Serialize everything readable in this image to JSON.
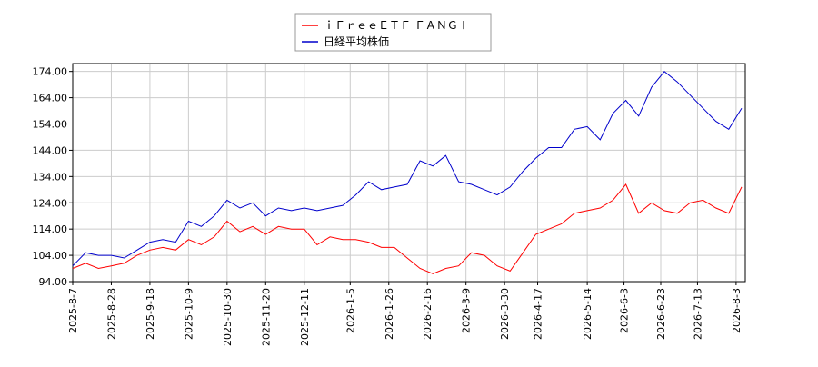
{
  "chart_data": {
    "type": "line",
    "x": [
      "2025-8-7",
      "2025-8-14",
      "2025-8-21",
      "2025-8-28",
      "2025-9-4",
      "2025-9-11",
      "2025-9-18",
      "2025-9-25",
      "2025-10-2",
      "2025-10-9",
      "2025-10-16",
      "2025-10-23",
      "2025-10-30",
      "2025-11-6",
      "2025-11-13",
      "2025-11-20",
      "2025-11-27",
      "2025-12-4",
      "2025-12-11",
      "2025-12-18",
      "2025-12-25",
      "2026-1-1",
      "2026-1-8",
      "2026-1-15",
      "2026-1-22",
      "2026-1-29",
      "2026-2-5",
      "2026-2-12",
      "2026-2-19",
      "2026-2-26",
      "2026-3-5",
      "2026-3-12",
      "2026-3-19",
      "2026-3-26",
      "2026-4-2",
      "2026-4-9",
      "2026-4-16",
      "2026-4-23",
      "2026-4-30",
      "2026-5-7",
      "2026-5-14",
      "2026-5-21",
      "2026-5-28",
      "2026-6-4",
      "2026-6-11",
      "2026-6-18",
      "2026-6-25",
      "2026-7-2",
      "2026-7-9",
      "2026-7-16",
      "2026-7-23",
      "2026-7-30",
      "2026-8-6"
    ],
    "series": [
      {
        "name": "ｉＦｒｅｅＥＴＦ ＦＡＮＧ＋",
        "color": "#ff0000",
        "values": [
          99,
          101,
          99,
          100,
          101,
          104,
          106,
          107,
          106,
          110,
          108,
          111,
          117,
          113,
          115,
          112,
          115,
          114,
          114,
          108,
          111,
          110,
          110,
          109,
          107,
          107,
          103,
          99,
          97,
          99,
          100,
          105,
          104,
          100,
          98,
          105,
          112,
          114,
          116,
          120,
          121,
          122,
          125,
          131,
          120,
          124,
          121,
          120,
          124,
          125,
          122,
          120,
          130
        ]
      },
      {
        "name": "日経平均株価",
        "color": "#0000cc",
        "values": [
          100,
          105,
          104,
          104,
          103,
          106,
          109,
          110,
          109,
          117,
          115,
          119,
          125,
          122,
          124,
          119,
          122,
          121,
          122,
          121,
          122,
          123,
          127,
          132,
          129,
          130,
          131,
          140,
          138,
          142,
          132,
          131,
          129,
          127,
          130,
          136,
          141,
          145,
          145,
          152,
          153,
          148,
          158,
          163,
          157,
          168,
          174,
          170,
          165,
          160,
          155,
          152,
          160
        ]
      }
    ],
    "xlim": [
      "2025-8-7",
      "2026-8-8"
    ],
    "xticks": [
      "2025-8-7",
      "2025-8-28",
      "2025-9-18",
      "2025-10-9",
      "2025-10-30",
      "2025-11-20",
      "2025-12-11",
      "2026-1-5",
      "2026-1-26",
      "2026-2-16",
      "2026-3-9",
      "2026-3-30",
      "2026-4-17",
      "2026-5-14",
      "2026-6-3",
      "2026-6-23",
      "2026-7-13",
      "2026-8-3"
    ],
    "ylim": [
      94,
      177
    ],
    "yticks": [
      {
        "value": 94,
        "label": "94.00"
      },
      {
        "value": 104,
        "label": "104.00"
      },
      {
        "value": 114,
        "label": "114.00"
      },
      {
        "value": 124,
        "label": "124.00"
      },
      {
        "value": 134,
        "label": "134.00"
      },
      {
        "value": 144,
        "label": "144.00"
      },
      {
        "value": 154,
        "label": "154.00"
      },
      {
        "value": 164,
        "label": "164.00"
      },
      {
        "value": 174,
        "label": "174.00"
      }
    ],
    "grid": true
  }
}
